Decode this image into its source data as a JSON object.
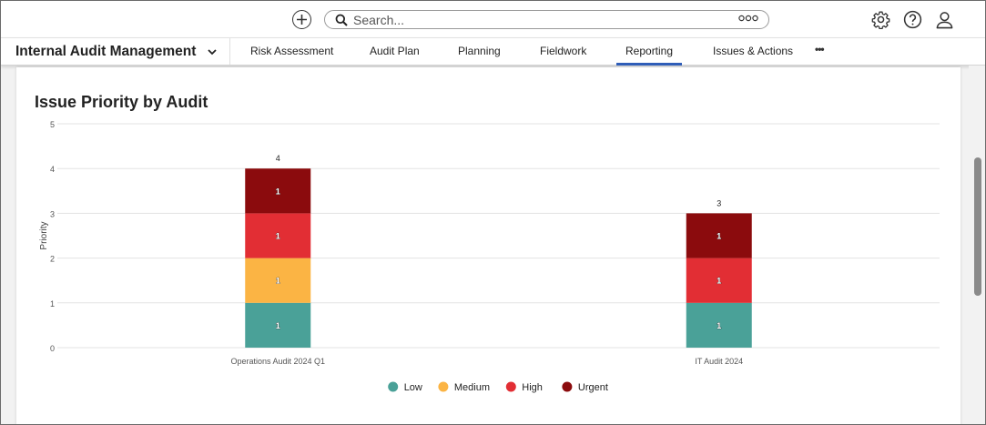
{
  "header": {
    "search": {
      "placeholder": "Search..."
    },
    "icons": {
      "add": "add-circle-icon",
      "search": "search-icon",
      "options": "search-options-icon",
      "settings": "gear-icon",
      "help": "help-icon",
      "user": "user-icon"
    }
  },
  "nav": {
    "app_name": "Internal Audit Management",
    "tabs": [
      {
        "label": "Risk Assessment"
      },
      {
        "label": "Audit Plan"
      },
      {
        "label": "Planning"
      },
      {
        "label": "Fieldwork"
      },
      {
        "label": "Reporting"
      },
      {
        "label": "Issues & Actions"
      }
    ],
    "active_tab": "Reporting",
    "more_label": "•••"
  },
  "report": {
    "title": "Issue Priority by Audit"
  },
  "colors": {
    "Low": "#4aa198",
    "Medium": "#fbb444",
    "High": "#e22e34",
    "Urgent": "#8b0b0d",
    "active_tab": "#2f5db8"
  },
  "chart_data": {
    "type": "bar",
    "stacked": true,
    "title": "Issue Priority by Audit",
    "xlabel": "",
    "ylabel": "Priority",
    "ylim": [
      0,
      5
    ],
    "yticks": [
      0,
      1,
      2,
      3,
      4,
      5
    ],
    "categories": [
      "Operations Audit 2024 Q1",
      "IT Audit 2024"
    ],
    "series": [
      {
        "name": "Low",
        "values": [
          1,
          1
        ]
      },
      {
        "name": "Medium",
        "values": [
          1,
          0
        ]
      },
      {
        "name": "High",
        "values": [
          1,
          1
        ]
      },
      {
        "name": "Urgent",
        "values": [
          1,
          1
        ]
      }
    ],
    "totals": [
      4,
      3
    ],
    "legend_position": "bottom-center",
    "grid": true
  }
}
